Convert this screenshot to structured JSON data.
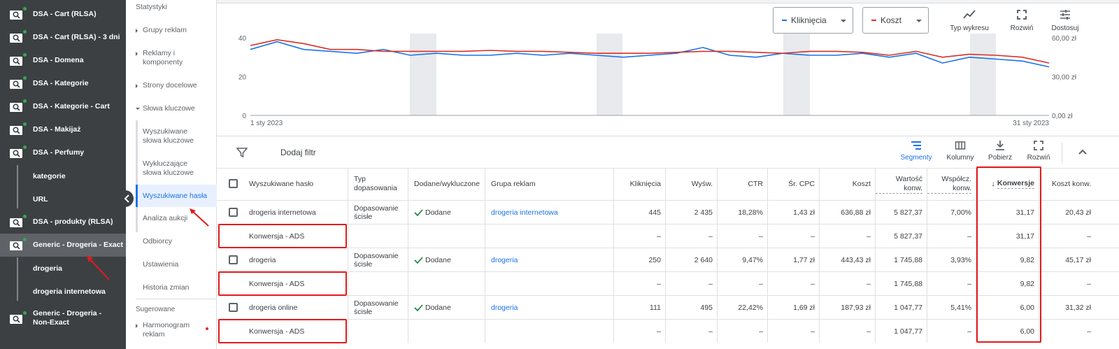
{
  "campaigns": [
    {
      "label": "DSA - Cart (RLSA)",
      "icon": "dsa-search-icon"
    },
    {
      "label": "DSA - Cart (RLSA) - 3 dni",
      "icon": "dsa-search-icon"
    },
    {
      "label": "DSA - Domena",
      "icon": "dsa-search-icon"
    },
    {
      "label": "DSA - Kategorie",
      "icon": "dsa-search-icon"
    },
    {
      "label": "DSA - Kategorie - Cart",
      "icon": "dsa-search-icon"
    },
    {
      "label": "DSA - Makijaż",
      "icon": "dsa-search-icon"
    },
    {
      "label": "DSA - Perfumy",
      "icon": "dsa-search-icon"
    },
    {
      "label": "kategorie",
      "sub": true
    },
    {
      "label": "URL",
      "sub": true
    },
    {
      "label": "DSA - produkty (RLSA)",
      "icon": "dsa-search-icon"
    },
    {
      "label": "Generic - Drogeria - Exact",
      "icon": "search-icon",
      "selected": true
    },
    {
      "label": "drogeria",
      "sub": true
    },
    {
      "label": "drogeria internetowa",
      "sub": true
    },
    {
      "label": "Generic - Drogeria - Non-Exact",
      "icon": "search-icon"
    }
  ],
  "nav": {
    "statystyki": "Statystyki",
    "grupy": "Grupy reklam",
    "reklamy": "Reklamy i komponenty",
    "strony": "Strony docelowe",
    "slowa": "Słowa kluczowe",
    "wyszukiwane_slowa": "Wyszukiwane słowa kluczowe",
    "wykluczajace": "Wykluczające słowa kluczowe",
    "wyszukiwane_hasla": "Wyszukiwane hasła",
    "analiza": "Analiza aukcji",
    "odbiorcy": "Odbiorcy",
    "ustawienia": "Ustawienia",
    "historia": "Historia zmian",
    "sugerowane": "Sugerowane",
    "harmonogram": "Harmonogram reklam"
  },
  "chart_controls": {
    "metric1": "Kliknięcia",
    "metric1_color": "#1a73e8",
    "metric2": "Koszt",
    "metric2_color": "#d93025",
    "typ": "Typ wykresu",
    "rozwin": "Rozwiń",
    "dostosuj": "Dostosuj"
  },
  "chart_data": {
    "type": "line",
    "x_start_label": "1 sty 2023",
    "x_end_label": "31 sty 2023",
    "left_ticks": [
      "40",
      "20",
      "0"
    ],
    "right_ticks": [
      "60,00 zł",
      "30,00 zł",
      "0,00 zł"
    ],
    "ylim_left": [
      0,
      40
    ],
    "ylim_right": [
      0,
      60
    ],
    "series": [
      {
        "color": "#1a73e8",
        "axis": "left",
        "values": [
          34,
          38,
          34,
          33,
          32,
          34,
          31,
          32,
          31,
          31,
          32,
          31,
          32,
          31,
          30,
          31,
          32,
          35,
          31,
          30,
          32,
          31,
          31,
          32,
          30,
          32,
          27,
          30,
          29,
          28,
          25
        ]
      },
      {
        "color": "#d93025",
        "axis": "left",
        "values": [
          36,
          39,
          37,
          34,
          34,
          33,
          33,
          33,
          33,
          33.5,
          33,
          33,
          32.5,
          32,
          32,
          32,
          32.5,
          33,
          33,
          32.5,
          32,
          33,
          33,
          32.5,
          31,
          33,
          30,
          31.5,
          31,
          30,
          27
        ]
      }
    ]
  },
  "toolbar": {
    "filter": "Dodaj filtr",
    "segmenty": "Segmenty",
    "kolumny": "Kolumny",
    "pobierz": "Pobierz",
    "rozwin": "Rozwiń"
  },
  "table": {
    "headers": [
      "Wyszukiwane hasło",
      "Typ dopasowania",
      "Dodane/wykluczone",
      "Grupa reklam",
      "Kliknięcia",
      "Wyśw.",
      "CTR",
      "Śr. CPC",
      "Koszt",
      "Wartość konw.",
      "Współcz. konw.",
      "Konwersje",
      "Koszt konw."
    ],
    "rows": [
      {
        "term": "drogeria internetowa",
        "match": "Dopasowanie ścisłe",
        "status": "Dodane",
        "group": "drogeria internetowa",
        "clicks": "445",
        "impr": "2 435",
        "ctr": "18,28%",
        "cpc": "1,43 zł",
        "cost": "636,88 zł",
        "value": "5 827,37",
        "rate": "7,00%",
        "conv": "31,17",
        "cpa": "20,43 zł"
      },
      {
        "term": "Konwersja - ADS",
        "segment": true,
        "clicks": "–",
        "impr": "–",
        "ctr": "–",
        "cpc": "–",
        "cost": "–",
        "value": "5 827,37",
        "rate": "–",
        "conv": "31,17",
        "cpa": "–"
      },
      {
        "term": "drogeria",
        "match": "Dopasowanie ścisłe",
        "status": "Dodane",
        "group": "drogeria",
        "clicks": "250",
        "impr": "2 640",
        "ctr": "9,47%",
        "cpc": "1,77 zł",
        "cost": "443,43 zł",
        "value": "1 745,88",
        "rate": "3,93%",
        "conv": "9,82",
        "cpa": "45,17 zł"
      },
      {
        "term": "Konwersja - ADS",
        "segment": true,
        "clicks": "–",
        "impr": "–",
        "ctr": "–",
        "cpc": "–",
        "cost": "–",
        "value": "1 745,88",
        "rate": "–",
        "conv": "9,82",
        "cpa": "–"
      },
      {
        "term": "drogeria online",
        "match": "Dopasowanie ścisłe",
        "status": "Dodane",
        "group": "drogeria",
        "clicks": "111",
        "impr": "495",
        "ctr": "22,42%",
        "cpc": "1,69 zł",
        "cost": "187,93 zł",
        "value": "1 047,77",
        "rate": "5,41%",
        "conv": "6,00",
        "cpa": "31,32 zł"
      },
      {
        "term": "Konwersja - ADS",
        "segment": true,
        "clicks": "–",
        "impr": "–",
        "ctr": "–",
        "cpc": "–",
        "cost": "–",
        "value": "1 047,77",
        "rate": "–",
        "conv": "6,00",
        "cpa": "–"
      }
    ]
  }
}
